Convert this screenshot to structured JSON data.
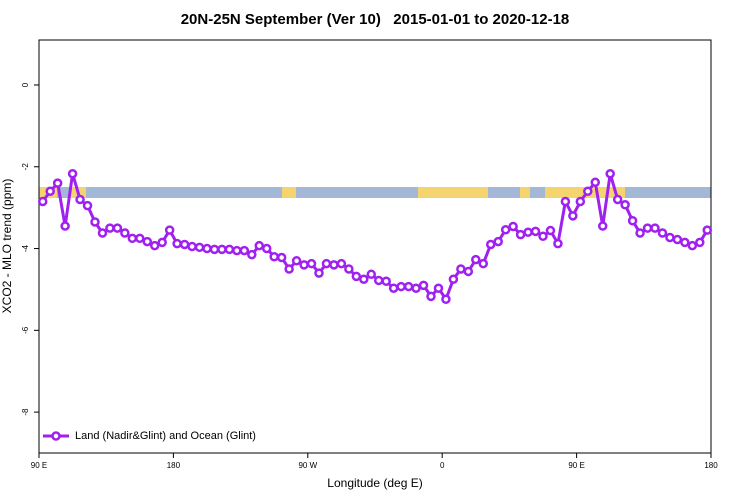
{
  "chart_data": {
    "type": "line",
    "title": "20N-25N September (Ver 10)   2015-01-01 to 2020-12-18",
    "x_label": "Longitude (deg E)",
    "y_label": "XCO2 - MLO trend (ppm)",
    "xlim": [
      90,
      540
    ],
    "ylim": [
      -9,
      1.1
    ],
    "xticks": [
      {
        "value": 90,
        "label": "90 E"
      },
      180,
      {
        "value": 270,
        "label": "90 W"
      },
      {
        "value": 360,
        "label": "0"
      },
      {
        "value": 450,
        "label": "90 E"
      },
      {
        "value": 540,
        "label": "180"
      }
    ],
    "yticks": [
      0,
      -2,
      -4,
      -6,
      -8
    ],
    "legend": "bottom-left",
    "x": [
      92.5,
      97.5,
      102.5,
      107.5,
      112.5,
      117.5,
      122.5,
      127.5,
      132.5,
      137.5,
      142.5,
      147.5,
      152.5,
      157.5,
      162.5,
      167.5,
      172.5,
      177.5,
      182.5,
      187.5,
      192.5,
      197.5,
      202.5,
      207.5,
      212.5,
      217.5,
      222.5,
      227.5,
      232.5,
      237.5,
      242.5,
      247.5,
      252.5,
      257.5,
      262.5,
      267.5,
      272.5,
      277.5,
      282.5,
      287.5,
      292.5,
      297.5,
      302.5,
      307.5,
      312.5,
      317.5,
      322.5,
      327.5,
      332.5,
      337.5,
      342.5,
      347.5,
      352.5,
      357.5,
      362.5,
      367.5,
      372.5,
      377.5,
      382.5,
      387.5,
      392.5,
      397.5,
      402.5,
      407.5,
      412.5,
      417.5,
      422.5,
      427.5,
      432.5,
      437.5,
      442.5,
      447.5,
      452.5,
      457.5,
      462.5,
      467.5,
      472.5,
      477.5,
      482.5,
      487.5,
      492.5,
      497.5,
      502.5,
      507.5,
      512.5,
      517.5,
      522.5,
      527.5,
      532.5,
      537.5
    ],
    "series": [
      {
        "name": "Land (Nadir&Glint) and Ocean (Glint)",
        "color": "#a020f0",
        "values": [
          -2.85,
          -2.6,
          -2.4,
          -3.45,
          -2.17,
          -2.8,
          -2.95,
          -3.35,
          -3.62,
          -3.5,
          -3.5,
          -3.62,
          -3.75,
          -3.75,
          -3.83,
          -3.93,
          -3.85,
          -3.55,
          -3.88,
          -3.9,
          -3.95,
          -3.97,
          -4.0,
          -4.02,
          -4.02,
          -4.02,
          -4.05,
          -4.05,
          -4.15,
          -3.93,
          -4.0,
          -4.2,
          -4.22,
          -4.5,
          -4.3,
          -4.4,
          -4.37,
          -4.6,
          -4.37,
          -4.4,
          -4.37,
          -4.5,
          -4.68,
          -4.75,
          -4.63,
          -4.78,
          -4.8,
          -4.97,
          -4.93,
          -4.93,
          -4.97,
          -4.9,
          -5.17,
          -4.97,
          -5.24,
          -4.75,
          -4.5,
          -4.56,
          -4.27,
          -4.37,
          -3.9,
          -3.83,
          -3.54,
          -3.46,
          -3.66,
          -3.6,
          -3.58,
          -3.7,
          -3.56,
          -3.88,
          -2.85,
          -3.2,
          -2.85,
          -2.6,
          -2.38,
          -3.45,
          -2.17,
          -2.8,
          -2.93,
          -3.32,
          -3.62,
          -3.5,
          -3.5,
          -3.62,
          -3.73,
          -3.78,
          -3.85,
          -3.93,
          -3.85,
          -3.55
        ]
      }
    ]
  }
}
